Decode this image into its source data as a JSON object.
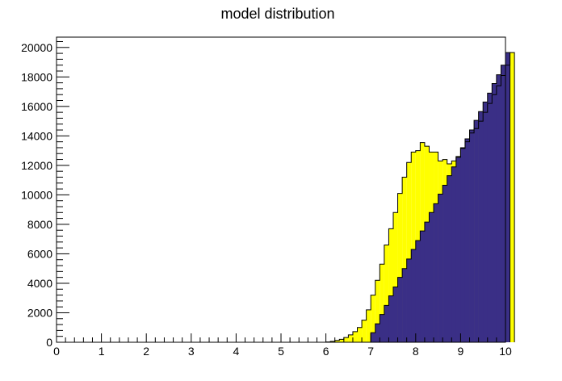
{
  "chart_data": {
    "type": "area",
    "title": "model distribution",
    "xlabel": "",
    "ylabel": "",
    "xlim": [
      0,
      10
    ],
    "ylim": [
      0,
      20700
    ],
    "x_ticks": [
      "0",
      "1",
      "2",
      "3",
      "4",
      "5",
      "6",
      "7",
      "8",
      "9",
      "10"
    ],
    "y_ticks": [
      "0",
      "2000",
      "4000",
      "6000",
      "8000",
      "10000",
      "12000",
      "14000",
      "16000",
      "18000",
      "20000"
    ],
    "grid": false,
    "legend": "none",
    "bins": 100,
    "bin_width": 0.1,
    "colors": {
      "top": "#ffff00",
      "bottom": "#3a2f86",
      "outline": "#000000"
    },
    "series": [
      {
        "name": "",
        "fill": "#3a2f86",
        "start": 7.0,
        "values": [
          650,
          1250,
          1880,
          2500,
          3150,
          3750,
          4400,
          5000,
          5650,
          6300,
          6900,
          7550,
          8150,
          8800,
          9400,
          10050,
          10650,
          11300,
          11900,
          12550,
          13150,
          13800,
          14400,
          15050,
          15650,
          16300,
          16900,
          17550,
          18150,
          18800,
          19650
        ]
      },
      {
        "name": "",
        "fill": "#ffff00",
        "start": 6.0,
        "stacked_total": [
          20,
          60,
          120,
          200,
          320,
          500,
          720,
          1000,
          1500,
          2200,
          3200,
          4200,
          5300,
          6600,
          7700,
          8800,
          10100,
          11200,
          12200,
          12900,
          13000,
          13550,
          13300,
          12900,
          12900,
          12300,
          12400,
          12100,
          12300,
          12600,
          13200,
          13600,
          14200,
          14500,
          15000,
          15600,
          16200,
          16800,
          17400,
          18100,
          18800,
          19650
        ]
      }
    ]
  }
}
